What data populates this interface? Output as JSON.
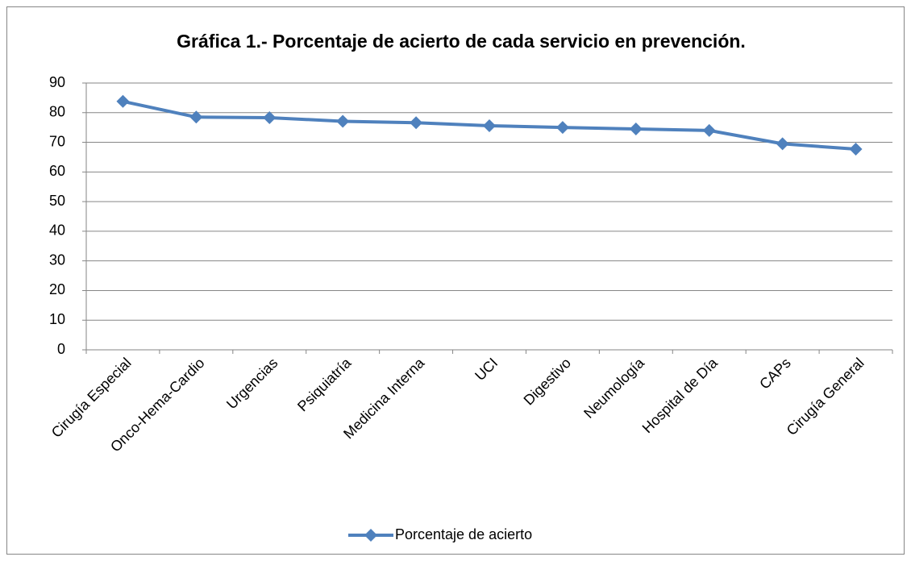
{
  "chart_data": {
    "type": "line",
    "title": "Gráfica 1.- Porcentaje de acierto de cada servicio en prevención.",
    "categories": [
      "Cirugía Especial",
      "Onco-Hema-Cardio",
      "Urgencias",
      "Psiquiatría",
      "Medicina Interna",
      "UCI",
      "Digestivo",
      "Neumología",
      "Hospital de Día",
      "CAPs",
      "Cirugía General"
    ],
    "series": [
      {
        "name": "Porcentaje de acierto",
        "color": "#4f81bd",
        "values": [
          83.8,
          78.5,
          78.3,
          77.1,
          76.6,
          75.6,
          75.0,
          74.5,
          74.0,
          69.5,
          67.7
        ]
      }
    ],
    "ylim": [
      0,
      90
    ],
    "yticks": [
      0,
      10,
      20,
      30,
      40,
      50,
      60,
      70,
      80,
      90
    ],
    "grid": true,
    "legend": "bottom"
  }
}
